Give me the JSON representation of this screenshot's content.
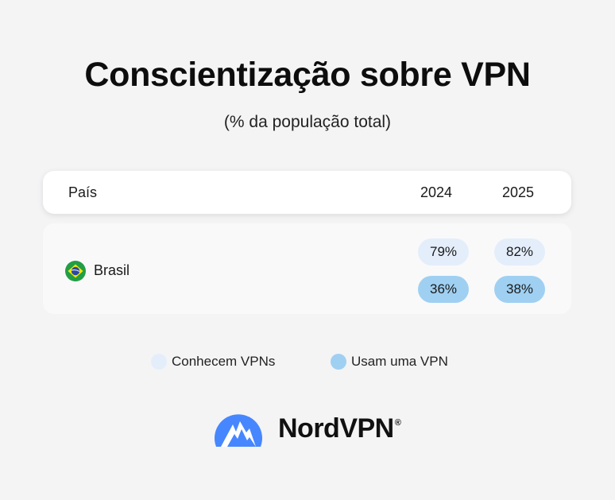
{
  "title": "Conscientização sobre VPN",
  "subtitle": "(% da população total)",
  "header": {
    "country_label": "País",
    "years": [
      "2024",
      "2025"
    ]
  },
  "rows": [
    {
      "country": "Brasil",
      "flag_icon": "brazil-flag-icon",
      "know_labels": [
        "79%",
        "82%"
      ],
      "use_labels": [
        "36%",
        "38%"
      ]
    }
  ],
  "legend": [
    {
      "label": "Conhecem VPNs",
      "color": "#e4eefb"
    },
    {
      "label": "Usam uma VPN",
      "color": "#9fd0f2"
    }
  ],
  "brand": {
    "name": "NordVPN",
    "mark": "®",
    "logo_icon": "nordvpn-mountain-logo-icon",
    "color": "#4687ff"
  },
  "chart_data": {
    "type": "table",
    "title": "Conscientização sobre VPN",
    "subtitle": "(% da população total)",
    "columns": [
      "País",
      "2024",
      "2025"
    ],
    "categories": [
      "2024",
      "2025"
    ],
    "series": [
      {
        "name": "Conhecem VPNs",
        "country": "Brasil",
        "values": [
          79,
          82
        ]
      },
      {
        "name": "Usam uma VPN",
        "country": "Brasil",
        "values": [
          36,
          38
        ]
      }
    ],
    "unit": "%"
  }
}
